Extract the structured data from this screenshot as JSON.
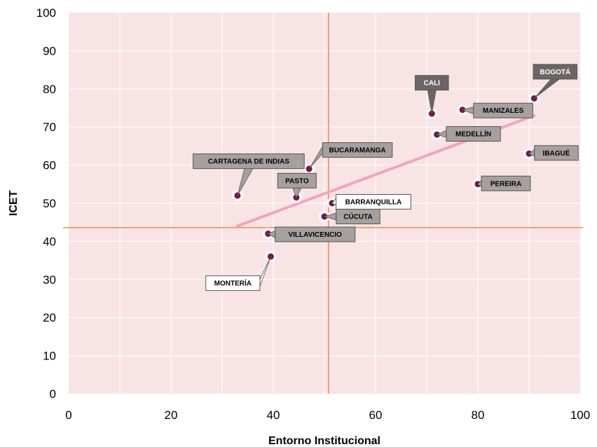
{
  "chart_data": {
    "type": "scatter",
    "title": "",
    "xlabel": "Entorno Institucional",
    "ylabel": "ICET",
    "xlim": [
      0,
      100
    ],
    "ylim": [
      0,
      100
    ],
    "x_ticks": [
      "0",
      "20",
      "40",
      "60",
      "80",
      "100"
    ],
    "y_ticks": [
      "0",
      "10",
      "20",
      "30",
      "40",
      "50",
      "60",
      "70",
      "80",
      "90",
      "100"
    ],
    "grid": true,
    "reference_lines": {
      "x": 50.8,
      "y": 43.6
    },
    "trendline": {
      "x": [
        33,
        91
      ],
      "y": [
        44,
        73
      ]
    },
    "points": [
      {
        "label": "BOGOTÁ",
        "x": 91,
        "y": 77.5,
        "label_style": "dark"
      },
      {
        "label": "CALI",
        "x": 71,
        "y": 73.5,
        "label_style": "dark"
      },
      {
        "label": "MANIZALES",
        "x": 77,
        "y": 74.5,
        "label_style": "gray"
      },
      {
        "label": "MEDELLÍN",
        "x": 72,
        "y": 68,
        "label_style": "gray"
      },
      {
        "label": "IBAGUÉ",
        "x": 90,
        "y": 63,
        "label_style": "gray"
      },
      {
        "label": "PEREIRA",
        "x": 80,
        "y": 55,
        "label_style": "gray"
      },
      {
        "label": "BUCARAMANGA",
        "x": 47,
        "y": 59,
        "label_style": "gray"
      },
      {
        "label": "CARTAGENA DE INDIAS",
        "x": 33,
        "y": 52,
        "label_style": "gray"
      },
      {
        "label": "PASTO",
        "x": 44.5,
        "y": 51.5,
        "label_style": "gray"
      },
      {
        "label": "BARRANQUILLA",
        "x": 51.5,
        "y": 50,
        "label_style": "white"
      },
      {
        "label": "CÚCUTA",
        "x": 50,
        "y": 46.5,
        "label_style": "gray"
      },
      {
        "label": "VILLAVICENCIO",
        "x": 39,
        "y": 42,
        "label_style": "gray"
      },
      {
        "label": "MONTERÍA",
        "x": 39.5,
        "y": 36,
        "label_style": "white"
      }
    ]
  },
  "colors": {
    "plot_background": "#f8e4e4",
    "gridline": "#ffffff",
    "reference_line": "#e8904a",
    "trendline": "#f4a3c0",
    "marker_fill": "#7a1548",
    "marker_halo": "#ffffff",
    "label_gray_fill": "#a6a0a0",
    "label_dark_fill": "#6b6565",
    "label_white_fill": "#ffffff",
    "label_border": "#555555"
  }
}
